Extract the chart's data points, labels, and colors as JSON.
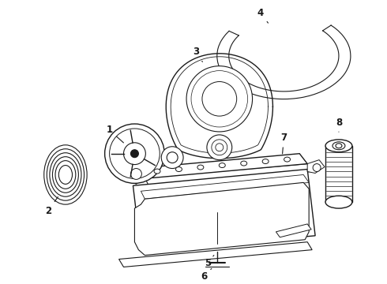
{
  "background_color": "#ffffff",
  "line_color": "#1a1a1a",
  "line_width": 1.0,
  "fig_width": 4.9,
  "fig_height": 3.6,
  "dpi": 100
}
